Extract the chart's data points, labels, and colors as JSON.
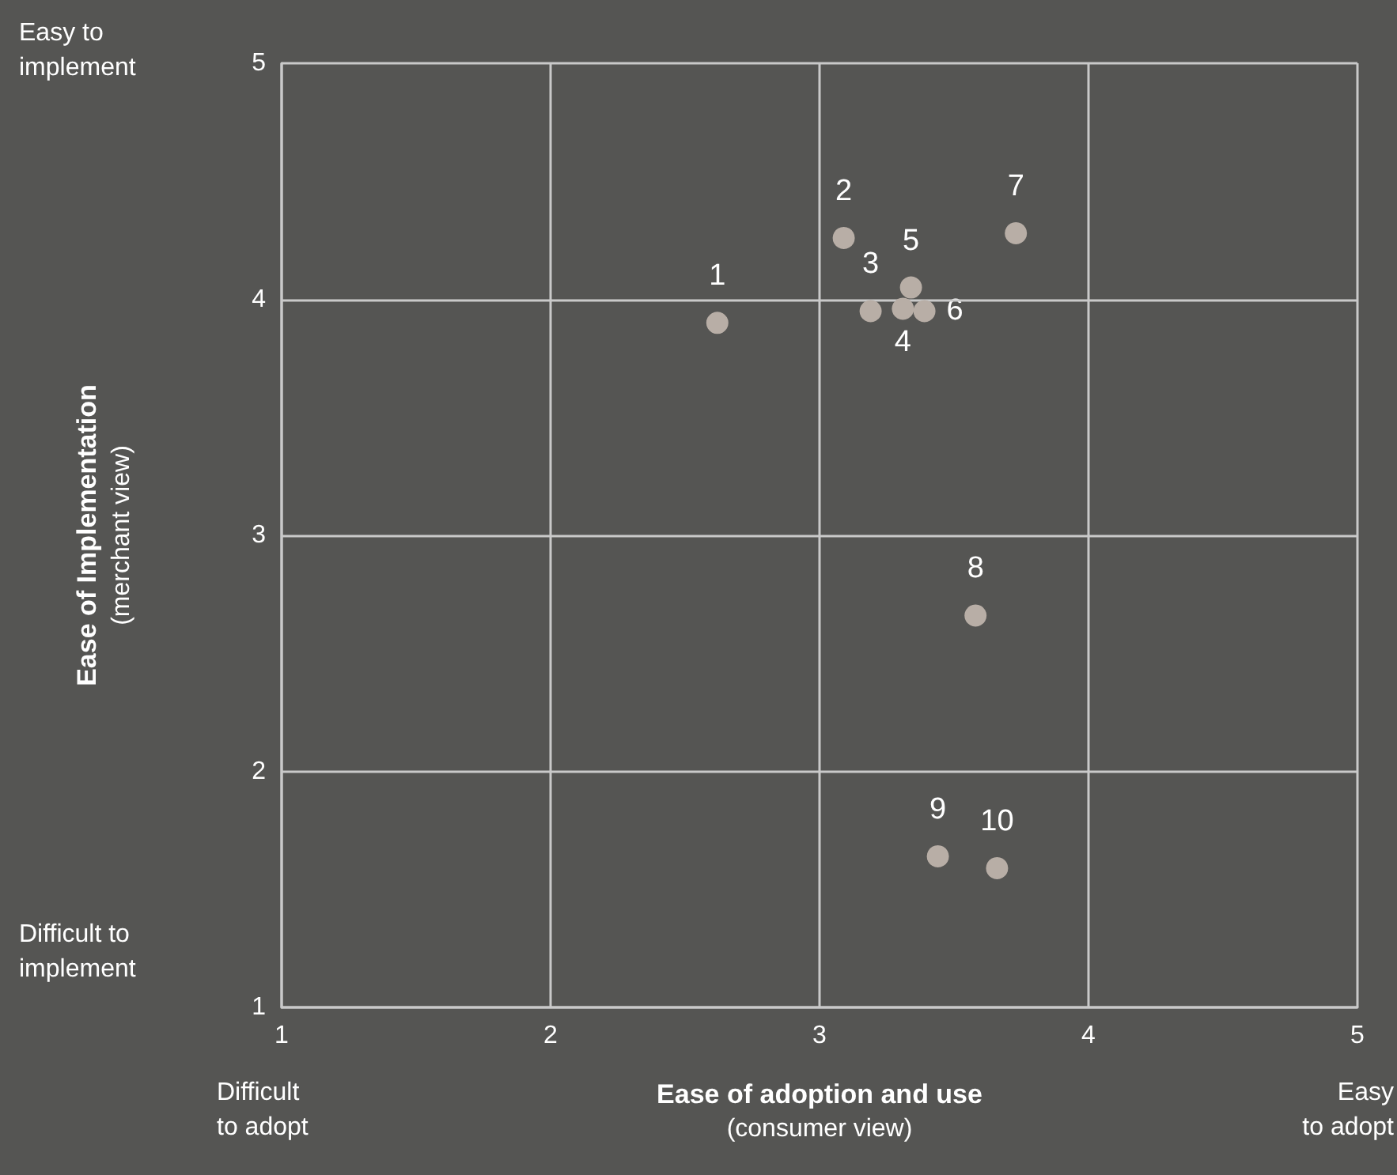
{
  "chart_data": {
    "type": "scatter",
    "xlabel": "Ease of adoption and use\n(consumer view)",
    "ylabel": "Ease of Implementation\n(merchant view)",
    "series": [
      {
        "color": "#b8aea6",
        "x": [
          2.62,
          3.09,
          3.19,
          3.31,
          3.34,
          3.39,
          3.73,
          3.58,
          3.44,
          3.66
        ],
        "values": [
          3.9,
          4.26,
          3.95,
          3.96,
          4.05,
          3.95,
          4.28,
          2.66,
          1.64,
          1.59
        ]
      }
    ],
    "xlim": [
      1,
      5
    ],
    "xticks": [
      1,
      2,
      3,
      4,
      5
    ],
    "ylim": [
      1,
      5
    ],
    "yticks": [
      1,
      2,
      3,
      4,
      5
    ],
    "grid": true,
    "marker": "circle",
    "annotations": [
      "Easy to\nimplement",
      "Difficult to\nimplement",
      "Difficult\nto adopt",
      "Easy\nto adopt",
      {
        "text": "1",
        "x": 2.62,
        "y": 3.9
      },
      {
        "text": "2",
        "x": 3.09,
        "y": 4.26
      },
      {
        "text": "3",
        "x": 3.19,
        "y": 3.95
      },
      {
        "text": "4",
        "x": 3.31,
        "y": 3.96
      },
      {
        "text": "5",
        "x": 3.34,
        "y": 4.05
      },
      {
        "text": "6",
        "x": 3.39,
        "y": 3.95
      },
      {
        "text": "7",
        "x": 3.73,
        "y": 4.28
      },
      {
        "text": "8",
        "x": 3.58,
        "y": 2.66
      },
      {
        "text": "9",
        "x": 3.44,
        "y": 1.64
      },
      {
        "text": "10",
        "x": 3.66,
        "y": 1.59
      }
    ]
  }
}
